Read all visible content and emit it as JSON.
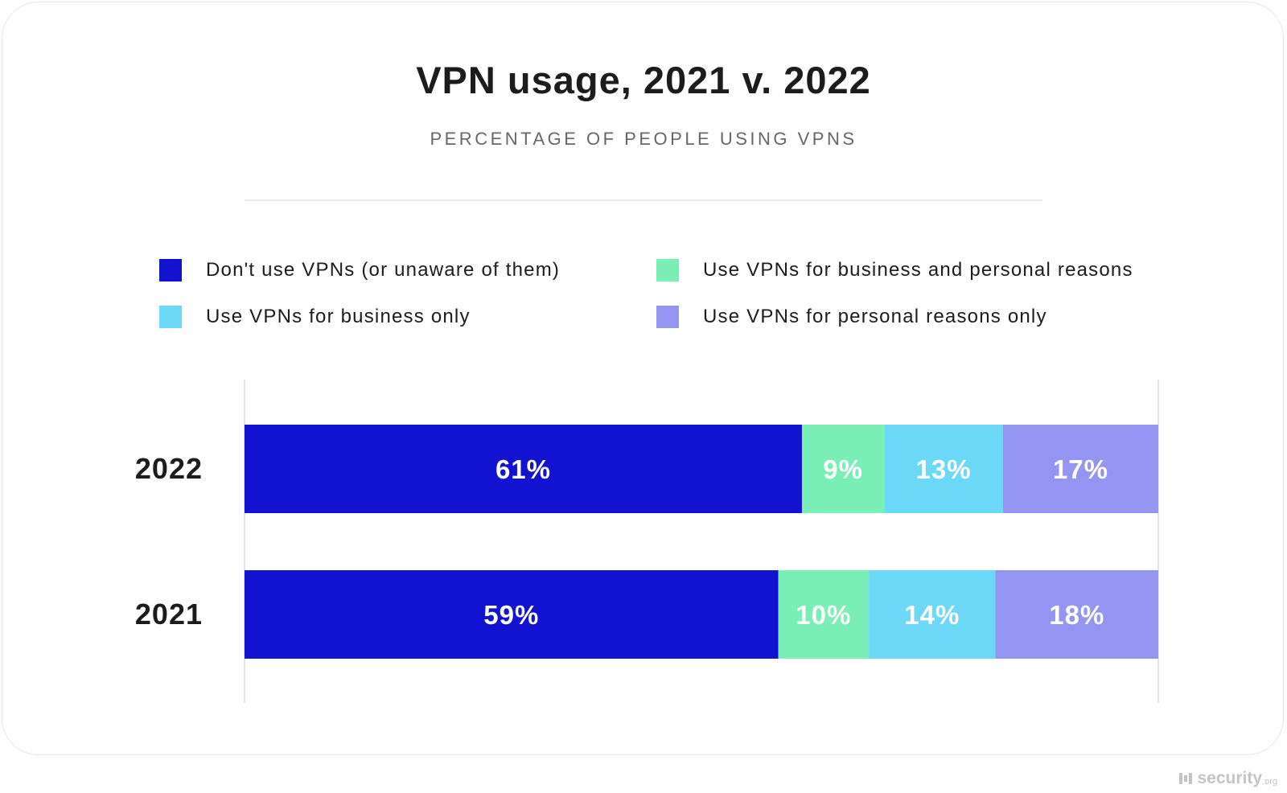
{
  "chart_data": {
    "type": "bar",
    "orientation": "horizontal",
    "stacked": true,
    "title": "VPN usage, 2021 v. 2022",
    "subtitle": "PERCENTAGE OF PEOPLE USING VPNS",
    "categories": [
      "2022",
      "2021"
    ],
    "series": [
      {
        "name": "Don't use VPNs (or unaware of them)",
        "color": "#1212d1",
        "values": [
          61,
          59
        ],
        "labels": [
          "61%",
          "59%"
        ]
      },
      {
        "name": "Use VPNs for business and personal reasons",
        "color": "#79efb6",
        "values": [
          9,
          10
        ],
        "labels": [
          "9%",
          "10%"
        ]
      },
      {
        "name": "Use VPNs for business only",
        "color": "#6cd8f7",
        "values": [
          13,
          14
        ],
        "labels": [
          "13%",
          "14%"
        ]
      },
      {
        "name": "Use VPNs for personal reasons only",
        "color": "#9494f2",
        "values": [
          17,
          18
        ],
        "labels": [
          "17%",
          "18%"
        ]
      }
    ],
    "xlim": [
      0,
      100
    ],
    "legend_position": "top",
    "grid": false
  },
  "watermark": {
    "brand": "security",
    "suffix": ".org"
  }
}
